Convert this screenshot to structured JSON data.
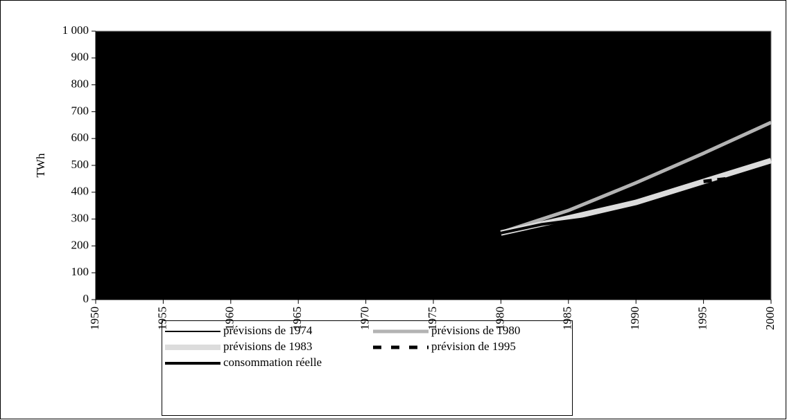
{
  "chart_data": {
    "type": "line",
    "y_label": "TWh",
    "xlim": [
      1950,
      2000
    ],
    "xticks": [
      1950,
      1955,
      1960,
      1965,
      1970,
      1975,
      1980,
      1985,
      1990,
      1995,
      2000
    ],
    "ylim": [
      0,
      1000
    ],
    "yticks": [
      0,
      100,
      200,
      300,
      400,
      500,
      600,
      700,
      800,
      900,
      {
        "value": 1000,
        "label": "1 000"
      }
    ],
    "plot_background": "#000000",
    "series": [
      {
        "name": "prévisions de 1974",
        "color": "#000000",
        "width": 2,
        "dashed": false,
        "x": [
          1980,
          1985,
          1990
        ],
        "values": [
          255,
          305,
          360
        ]
      },
      {
        "name": "prévisions de 1980",
        "color": "#b3b3b3",
        "width": 5,
        "dashed": false,
        "x": [
          1980,
          1985,
          1990,
          1995,
          2000
        ],
        "values": [
          250,
          332,
          435,
          545,
          660
        ]
      },
      {
        "name": "prévisions de 1983",
        "color": "#dcdcdc",
        "width": 8,
        "dashed": false,
        "x": [
          1980,
          1985,
          1990,
          1995,
          2000
        ],
        "values": [
          248,
          304,
          362,
          440,
          518
        ]
      },
      {
        "name": "prévision de 1995",
        "color": "#000000",
        "width": 5,
        "dashed": true,
        "x": [
          1995,
          2000
        ],
        "values": [
          440,
          470
        ]
      },
      {
        "name": "consommation réelle",
        "color": "#000000",
        "width": 4,
        "dashed": false,
        "x": [
          1980,
          1983,
          1986,
          1988
        ],
        "values": [
          248,
          280,
          300,
          315
        ]
      }
    ]
  }
}
